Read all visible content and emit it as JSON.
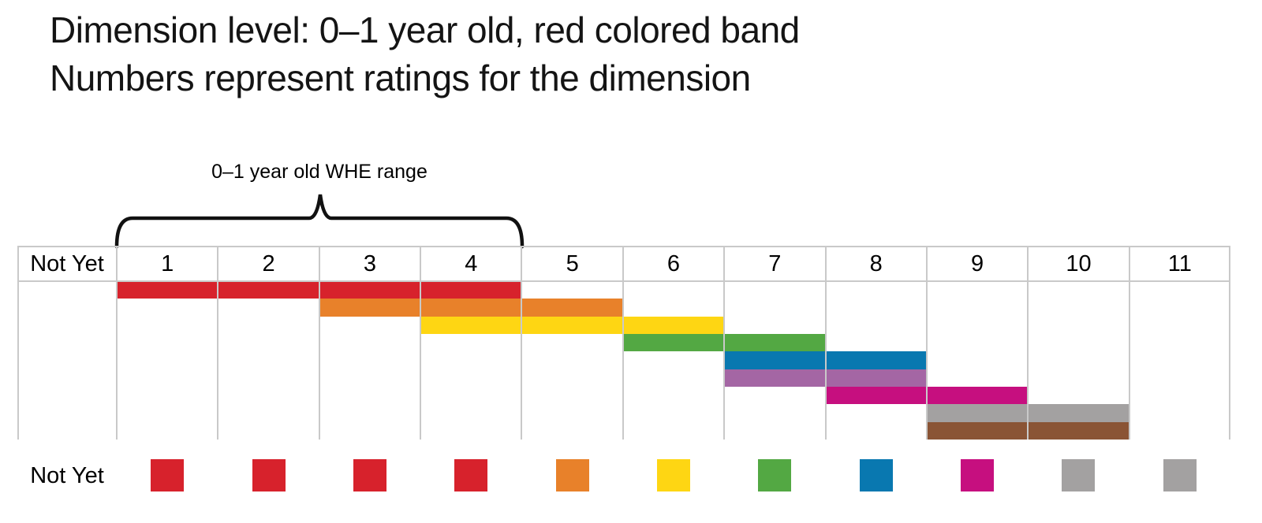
{
  "title": {
    "line1": "Dimension level: 0–1 year old, red colored band",
    "line2": "Numbers represent ratings for the dimension"
  },
  "chart_data": {
    "type": "table",
    "title": "Dimension level: 0–1 year old, red colored band. Numbers represent ratings for the dimension",
    "columns": [
      "Not Yet",
      "1",
      "2",
      "3",
      "4",
      "5",
      "6",
      "7",
      "8",
      "9",
      "10",
      "11"
    ],
    "bracket": {
      "label": "0–1 year old WHE range",
      "from_column": "1",
      "to_column": "4"
    },
    "bands": [
      {
        "name": "red",
        "color": "#D7222C",
        "from_column": "1",
        "to_column": "4"
      },
      {
        "name": "orange",
        "color": "#E8812A",
        "from_column": "3",
        "to_column": "5"
      },
      {
        "name": "yellow",
        "color": "#FED613",
        "from_column": "4",
        "to_column": "6"
      },
      {
        "name": "green",
        "color": "#53A843",
        "from_column": "6",
        "to_column": "7"
      },
      {
        "name": "blue",
        "color": "#0978B0",
        "from_column": "7",
        "to_column": "8"
      },
      {
        "name": "purple",
        "color": "#A466A4",
        "from_column": "7",
        "to_column": "8"
      },
      {
        "name": "magenta",
        "color": "#C60F7F",
        "from_column": "8",
        "to_column": "9"
      },
      {
        "name": "gray",
        "color": "#A3A1A1",
        "from_column": "9",
        "to_column": "10"
      },
      {
        "name": "brown",
        "color": "#8A5435",
        "from_column": "9",
        "to_column": "10"
      }
    ],
    "legend": {
      "label": "Not Yet",
      "swatches": [
        {
          "column": "1",
          "color_name": "red",
          "color": "#D7222C"
        },
        {
          "column": "2",
          "color_name": "red",
          "color": "#D7222C"
        },
        {
          "column": "3",
          "color_name": "red",
          "color": "#D7222C"
        },
        {
          "column": "4",
          "color_name": "red",
          "color": "#D7222C"
        },
        {
          "column": "5",
          "color_name": "orange",
          "color": "#E8812A"
        },
        {
          "column": "6",
          "color_name": "yellow",
          "color": "#FED613"
        },
        {
          "column": "7",
          "color_name": "green",
          "color": "#53A843"
        },
        {
          "column": "8",
          "color_name": "blue",
          "color": "#0978B0"
        },
        {
          "column": "9",
          "color_name": "magenta",
          "color": "#C60F7F"
        },
        {
          "column": "10",
          "color_name": "gray",
          "color": "#A3A1A1"
        },
        {
          "column": "11",
          "color_name": "gray",
          "color": "#A3A1A1"
        }
      ]
    },
    "gridline_color": "#C9C9C9",
    "layout": {
      "grid": "on",
      "legend_position": "bottom",
      "bracket_position": "top"
    }
  }
}
